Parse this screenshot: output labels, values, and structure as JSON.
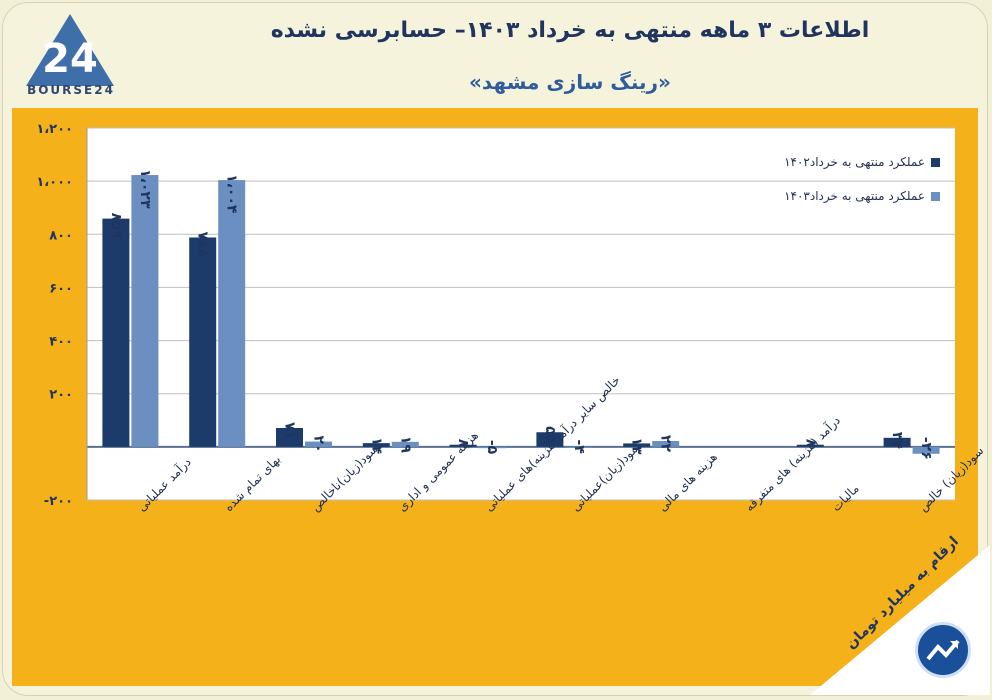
{
  "header": {
    "title": "اطلاعات ۳ ماهه منتهی به خرداد ۱۴۰۳– حسابرسی نشده",
    "subtitle": "«رینگ سازی مشهد»",
    "logo_text": "BOURSE24",
    "logo_number": "24"
  },
  "note": "ارقام به میلیارد تومان",
  "colors": {
    "series1": "#1c3b6b",
    "series2": "#6a8fc0",
    "frame": "#f5b11a",
    "grid": "#bfbfbf"
  },
  "chart_data": {
    "type": "bar",
    "title": "اطلاعات ۳ ماهه منتهی به خرداد ۱۴۰۳– حسابرسی نشده",
    "ylim": [
      -200,
      1200
    ],
    "yticks": [
      -200,
      0,
      200,
      400,
      600,
      800,
      1000,
      1200
    ],
    "ytick_labels": [
      "-۲۰۰",
      "",
      "۲۰۰",
      "۴۰۰",
      "۶۰۰",
      "۸۰۰",
      "۱،۰۰۰",
      "۱،۲۰۰"
    ],
    "categories": [
      "درآمد عملیاتی",
      "بهای تمام شده",
      "سود(زیان)ناخالص",
      "هزینه عمومی و اداری",
      "خالص سایر درآمد(هزینه)های عملیاتی",
      "سود(زیان)عملیاتی",
      "هزینه های مالی",
      "درآمد (هزینه) های متفرقه",
      "مالیات",
      "سود(زیان) خالص"
    ],
    "series": [
      {
        "name": "عملکرد منتهی به خرداد۱۴۰۲",
        "values": [
          859,
          788,
          71,
          14,
          8,
          55,
          13,
          0,
          8,
          34
        ],
        "labels": [
          "۸۵۹",
          "۷۸۸",
          "۷۱",
          "۱۴",
          "۸",
          "۵۵",
          "۱۳",
          "",
          "۸",
          "۳۴"
        ]
      },
      {
        "name": "عملکرد منتهی به خرداد۱۴۰۳",
        "values": [
          1023,
          1004,
          20,
          19,
          -5,
          -4,
          22,
          0,
          0,
          -26
        ],
        "labels": [
          "۱،۰۲۳",
          "۱،۰۰۴",
          "۲۰",
          "۱۹",
          "-۵",
          "-۴",
          "۲۲",
          "",
          "",
          "-۲۶"
        ]
      }
    ],
    "legend": "top-right"
  }
}
